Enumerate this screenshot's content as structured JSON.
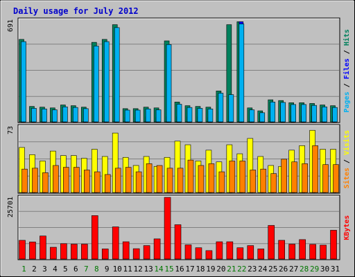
{
  "chart_data": {
    "type": "bar",
    "title": "Daily usage for July 2012",
    "categories": [
      "1",
      "2",
      "3",
      "4",
      "5",
      "6",
      "7",
      "8",
      "9",
      "10",
      "11",
      "12",
      "13",
      "14",
      "15",
      "16",
      "17",
      "18",
      "19",
      "20",
      "21",
      "22",
      "23",
      "24",
      "25",
      "26",
      "27",
      "28",
      "29",
      "30",
      "31"
    ],
    "weekend_days": [
      "1",
      "7",
      "8",
      "14",
      "15",
      "21",
      "22",
      "28",
      "29"
    ],
    "colors": {
      "title": "#0000cc",
      "weekday_label": "#000000",
      "weekend_label": "#007700",
      "hits": "#00805c",
      "files": "#0000ff",
      "pages": "#00b0f0",
      "visits": "#ffff00",
      "sites": "#ff8000",
      "kbytes": "#ff0000"
    },
    "panels": [
      {
        "id": "hits-files-pages",
        "ymax_label": "691",
        "ymax": 691,
        "legend": [
          {
            "label": "Pages",
            "color": "#00b0f0"
          },
          {
            "label": "Files",
            "color": "#0000ff"
          },
          {
            "label": "Hits",
            "color": "#00805c"
          }
        ],
        "series": [
          {
            "name": "Hits",
            "values": [
              560,
              105,
              100,
              95,
              115,
              110,
              100,
              540,
              560,
              660,
              90,
              90,
              100,
              95,
              550,
              135,
              110,
              105,
              100,
              210,
              660,
              680,
              95,
              75,
              150,
              145,
              130,
              130,
              125,
              115,
              110
            ]
          },
          {
            "name": "Files",
            "values": [
              40,
              35,
              30,
              30,
              35,
              35,
              30,
              180,
              70,
              160,
              30,
              30,
              35,
              30,
              35,
              35,
              35,
              35,
              30,
              70,
              40,
              680,
              30,
              25,
              30,
              35,
              40,
              40,
              40,
              35,
              35
            ]
          },
          {
            "name": "Pages",
            "values": [
              545,
              92,
              88,
              82,
              102,
              98,
              90,
              515,
              545,
              640,
              80,
              80,
              88,
              82,
              525,
              120,
              98,
              92,
              88,
              195,
              185,
              665,
              82,
              62,
              135,
              132,
              118,
              118,
              112,
              102,
              98
            ]
          }
        ]
      },
      {
        "id": "visits-sites",
        "ymax_label": "73",
        "ymax": 73,
        "legend": [
          {
            "label": "Sites",
            "color": "#ff8000"
          },
          {
            "label": "Visits",
            "color": "#ffff00"
          }
        ],
        "series": [
          {
            "name": "Visits",
            "values": [
              50,
              42,
              35,
              46,
              41,
              41,
              38,
              48,
              40,
              66,
              39,
              30,
              40,
              29,
              39,
              57,
              53,
              35,
              47,
              34,
              53,
              43,
              60,
              40,
              30,
              29,
              47,
              52,
              69,
              48,
              48
            ]
          },
          {
            "name": "Sites",
            "values": [
              26,
              27,
              22,
              30,
              28,
              28,
              25,
              23,
              20,
              27,
              28,
              23,
              32,
              30,
              27,
              27,
              36,
              30,
              32,
              23,
              35,
              35,
              25,
              26,
              21,
              37,
              34,
              32,
              52,
              31,
              31
            ]
          }
        ]
      },
      {
        "id": "kbytes",
        "ymax_label": "25701",
        "ymax": 25701,
        "legend": [
          {
            "label": "KBytes",
            "color": "#ff0000"
          }
        ],
        "series": [
          {
            "name": "KBytes",
            "values": [
              7800,
              7100,
              9600,
              4900,
              6400,
              6200,
              6200,
              18100,
              4200,
              13400,
              7200,
              4300,
              5600,
              8400,
              25701,
              14300,
              5900,
              4700,
              3500,
              7200,
              7200,
              4700,
              5600,
              4200,
              14000,
              7800,
              6200,
              8100,
              6100,
              5800,
              12000
            ]
          }
        ]
      }
    ]
  }
}
